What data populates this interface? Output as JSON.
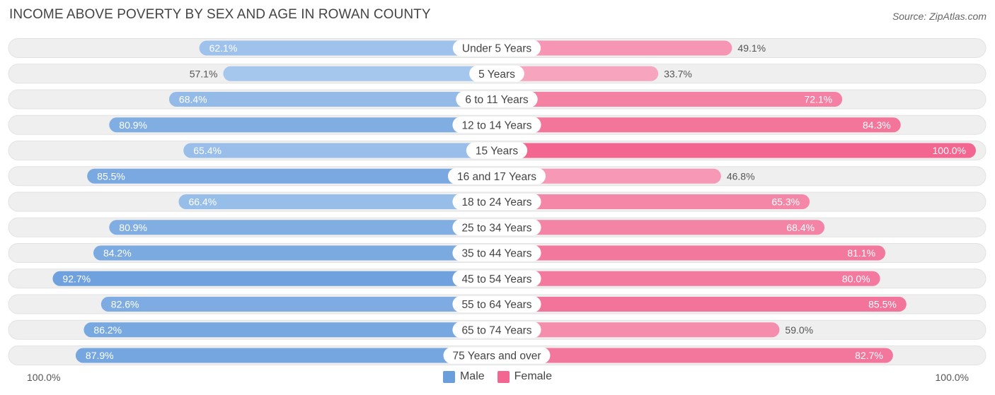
{
  "title": "INCOME ABOVE POVERTY BY SEX AND AGE IN ROWAN COUNTY",
  "source": "Source: ZipAtlas.com",
  "axis": {
    "left_label": "100.0%",
    "right_label": "100.0%"
  },
  "legend": {
    "male_label": "Male",
    "female_label": "Female"
  },
  "colors": {
    "male_strong": "#6a9fdc",
    "male_light": "#a9c9ee",
    "female_strong": "#f2668f",
    "female_light": "#f7a8c2",
    "track": "#efefef"
  },
  "chart_data": {
    "type": "bar",
    "orientation": "horizontal-diverging",
    "categories": [
      "Under 5 Years",
      "5 Years",
      "6 to 11 Years",
      "12 to 14 Years",
      "15 Years",
      "16 and 17 Years",
      "18 to 24 Years",
      "25 to 34 Years",
      "35 to 44 Years",
      "45 to 54 Years",
      "55 to 64 Years",
      "65 to 74 Years",
      "75 Years and over"
    ],
    "series": [
      {
        "name": "Male",
        "values": [
          62.1,
          57.1,
          68.4,
          80.9,
          65.4,
          85.5,
          66.4,
          80.9,
          84.2,
          92.7,
          82.6,
          86.2,
          87.9
        ]
      },
      {
        "name": "Female",
        "values": [
          49.1,
          33.7,
          72.1,
          84.3,
          100.0,
          46.8,
          65.3,
          68.4,
          81.1,
          80.0,
          85.5,
          59.0,
          82.7
        ]
      }
    ],
    "value_labels_male": [
      "62.1%",
      "57.1%",
      "68.4%",
      "80.9%",
      "65.4%",
      "85.5%",
      "66.4%",
      "80.9%",
      "84.2%",
      "92.7%",
      "82.6%",
      "86.2%",
      "87.9%"
    ],
    "value_labels_female": [
      "49.1%",
      "33.7%",
      "72.1%",
      "84.3%",
      "100.0%",
      "46.8%",
      "65.3%",
      "68.4%",
      "81.1%",
      "80.0%",
      "85.5%",
      "59.0%",
      "82.7%"
    ],
    "xlim": [
      0,
      100
    ]
  }
}
